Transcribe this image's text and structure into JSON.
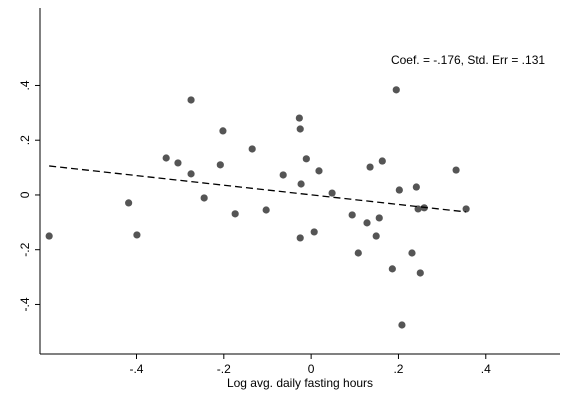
{
  "chart_data": {
    "type": "scatter",
    "annotation": "Coef. = -.176, Std. Err = .131",
    "x_label": "Log avg. daily fasting hours",
    "xlim": [
      -0.621,
      0.57
    ],
    "ylim": [
      -0.581,
      0.683
    ],
    "xticks": [
      {
        "value": -0.4,
        "label": "-.4"
      },
      {
        "value": -0.2,
        "label": "-.2"
      },
      0,
      {
        "value": 0.2,
        "label": ".2"
      },
      {
        "value": 0.4,
        "label": ".4"
      }
    ],
    "yticks": [
      {
        "value": -0.4,
        "label": "-.4"
      },
      {
        "value": -0.2,
        "label": "-.2"
      },
      0,
      {
        "value": 0.2,
        "label": ".2"
      },
      {
        "value": 0.4,
        "label": ".4"
      }
    ],
    "series": [
      {
        "color": "#555555",
        "x": [
          -0.6,
          -0.418,
          -0.399,
          -0.332,
          -0.305,
          -0.275,
          -0.275,
          -0.245,
          -0.208,
          -0.202,
          -0.174,
          -0.135,
          -0.103,
          -0.064,
          -0.027,
          -0.025,
          -0.025,
          -0.023,
          -0.011,
          0.007,
          0.018,
          0.048,
          0.094,
          0.108,
          0.128,
          0.135,
          0.149,
          0.156,
          0.163,
          0.186,
          0.195,
          0.202,
          0.208,
          0.231,
          0.241,
          0.245,
          0.25,
          0.259,
          0.332,
          0.355
        ],
        "values": [
          -0.15,
          -0.029,
          -0.146,
          0.135,
          0.117,
          0.347,
          0.077,
          -0.011,
          0.11,
          0.234,
          -0.069,
          0.168,
          -0.055,
          0.073,
          0.281,
          0.241,
          -0.157,
          0.04,
          0.132,
          -0.135,
          0.088,
          0.007,
          -0.073,
          -0.212,
          -0.102,
          0.102,
          -0.15,
          -0.084,
          0.124,
          -0.27,
          0.384,
          0.018,
          -0.475,
          -0.212,
          0.029,
          -0.051,
          -0.285,
          -0.047,
          0.091,
          -0.051
        ]
      },
      {
        "color": "#000000",
        "line_style": "dashed",
        "x": [
          -0.6,
          0.355
        ],
        "values": [
          0.106,
          -0.062
        ]
      }
    ]
  }
}
